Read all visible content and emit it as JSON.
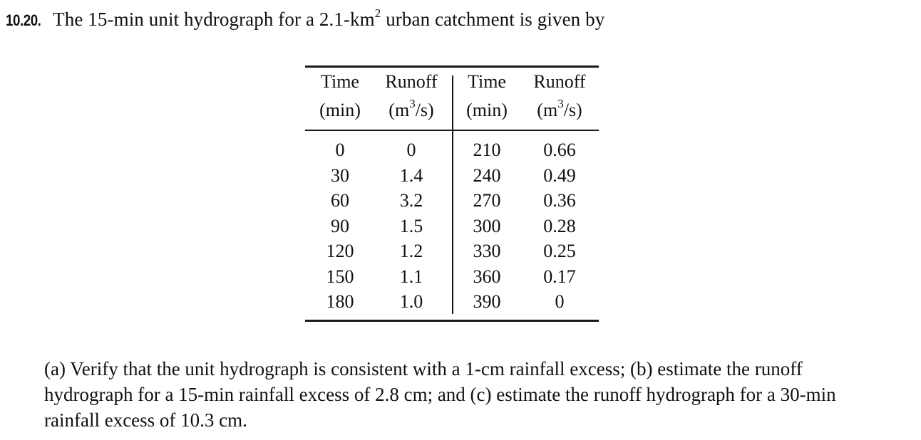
{
  "problem": {
    "number": "10.20.",
    "intro_before_sup": "The 15-min unit hydrograph for a 2.1-km",
    "intro_sup": "2",
    "intro_after_sup": " urban catchment is given by"
  },
  "table": {
    "headers": [
      {
        "line1": "Time",
        "line2": "(min)",
        "sup": ""
      },
      {
        "line1": "Runoff",
        "line2_pre": "(m",
        "sup": "3",
        "line2_post": "/s)"
      },
      {
        "line1": "Time",
        "line2": "(min)",
        "sup": ""
      },
      {
        "line1": "Runoff",
        "line2_pre": "(m",
        "sup": "3",
        "line2_post": "/s)"
      }
    ],
    "rows": [
      [
        "0",
        "0",
        "210",
        "0.66"
      ],
      [
        "30",
        "1.4",
        "240",
        "0.49"
      ],
      [
        "60",
        "3.2",
        "270",
        "0.36"
      ],
      [
        "90",
        "1.5",
        "300",
        "0.28"
      ],
      [
        "120",
        "1.2",
        "330",
        "0.25"
      ],
      [
        "150",
        "1.1",
        "360",
        "0.17"
      ],
      [
        "180",
        "1.0",
        "390",
        "0"
      ]
    ]
  },
  "question": {
    "line1": "(a) Verify that the unit hydrograph is consistent with a 1-cm rainfall excess; (b) estimate the runoff",
    "line2": "hydrograph for a 15-min rainfall excess of 2.8 cm; and (c) estimate the runoff hydrograph for a 30-min",
    "line3": "rainfall excess of 10.3 cm."
  }
}
